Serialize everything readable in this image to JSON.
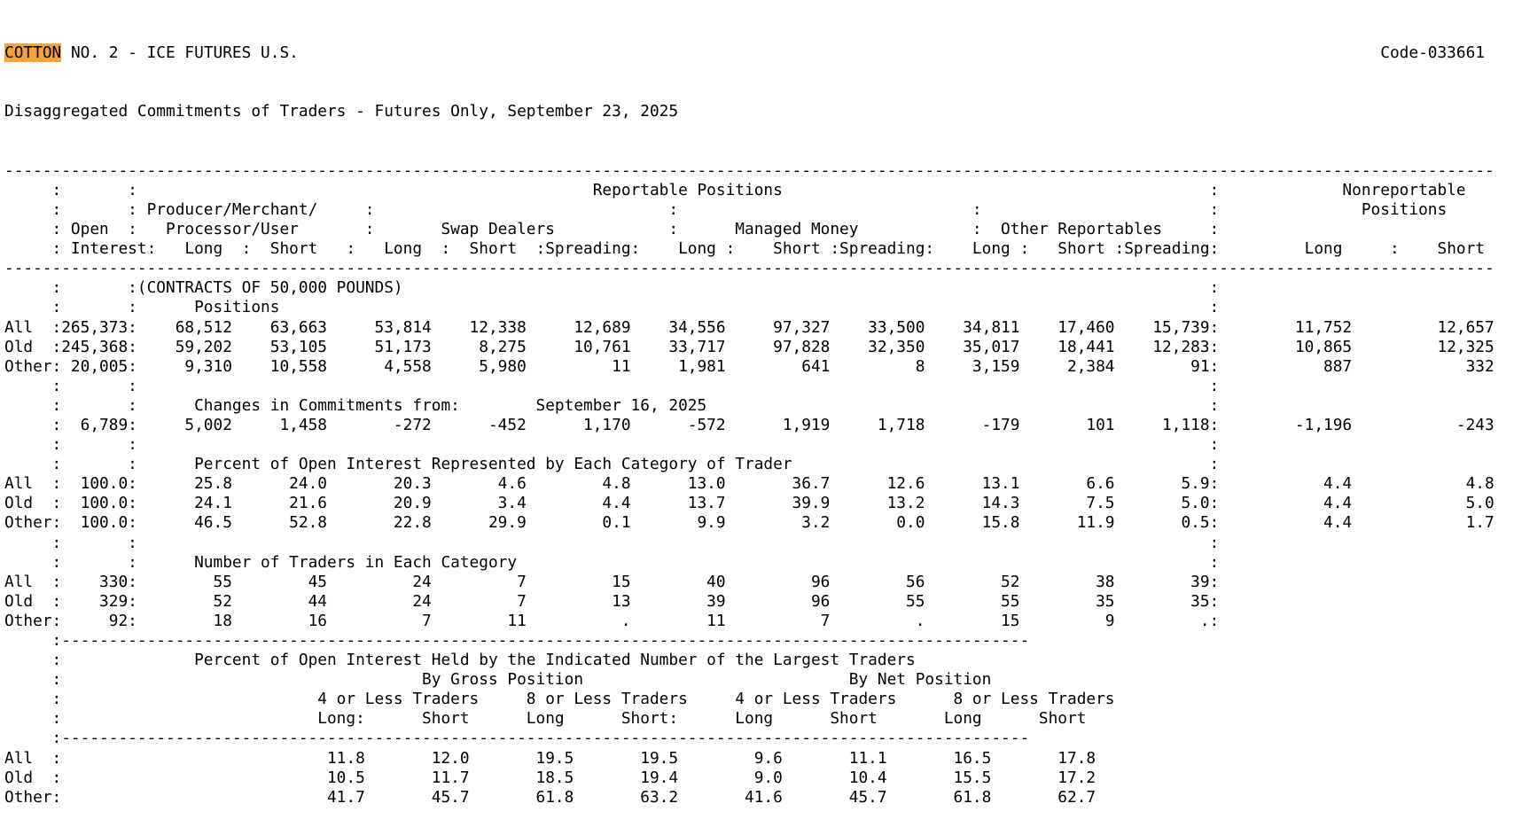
{
  "title": {
    "highlight": "COTTON",
    "rest": " NO. 2 - ICE FUTURES U.S.",
    "code": "Code-033661"
  },
  "subtitle": "Disaggregated Commitments of Traders - Futures Only, September 23, 2025",
  "colors": {
    "highlight_bg": "#F7A233",
    "text": "#000000",
    "background": "#FFFFFF"
  },
  "header": {
    "reportable": "Reportable Positions",
    "nonreportable_line1": "Nonreportable",
    "nonreportable_line2": "Positions",
    "producer_line1": "Producer/Merchant/",
    "producer_line2": "Processor/User",
    "open_line1": "Open",
    "open_line2": "Interest",
    "swap_dealers": "Swap Dealers",
    "managed_money": "Managed Money",
    "other_reportables": "Other Reportables",
    "long": "Long",
    "short": "Short",
    "spreading": "Spreading"
  },
  "sections": {
    "contracts_note": "(CONTRACTS OF 50,000 POUNDS)",
    "positions_label": "Positions",
    "changes_label": "Changes in Commitments from:",
    "changes_date": "September 16, 2025",
    "percent_label": "Percent of Open Interest Represented by Each Category of Trader",
    "traders_label": "Number of Traders in Each Category"
  },
  "rows": {
    "positions": [
      {
        "label": "All",
        "open_interest": "265,373",
        "values": [
          "68,512",
          "63,663",
          "53,814",
          "12,338",
          "12,689",
          "34,556",
          "97,327",
          "33,500",
          "34,811",
          "17,460",
          "15,739"
        ],
        "nonreportable": [
          "11,752",
          "12,657"
        ]
      },
      {
        "label": "Old",
        "open_interest": "245,368",
        "values": [
          "59,202",
          "53,105",
          "51,173",
          "8,275",
          "10,761",
          "33,717",
          "97,828",
          "32,350",
          "35,017",
          "18,441",
          "12,283"
        ],
        "nonreportable": [
          "10,865",
          "12,325"
        ]
      },
      {
        "label": "Other",
        "open_interest": "20,005",
        "values": [
          "9,310",
          "10,558",
          "4,558",
          "5,980",
          "11",
          "1,981",
          "641",
          "8",
          "3,159",
          "2,384",
          "91"
        ],
        "nonreportable": [
          "887",
          "332"
        ]
      }
    ],
    "changes": {
      "label": "",
      "open_interest": "6,789",
      "values": [
        "5,002",
        "1,458",
        "-272",
        "-452",
        "1,170",
        "-572",
        "1,919",
        "1,718",
        "-179",
        "101",
        "1,118"
      ],
      "nonreportable": [
        "-1,196",
        "-243"
      ]
    },
    "percent": [
      {
        "label": "All",
        "open_interest": "100.0",
        "values": [
          "25.8",
          "24.0",
          "20.3",
          "4.6",
          "4.8",
          "13.0",
          "36.7",
          "12.6",
          "13.1",
          "6.6",
          "5.9"
        ],
        "nonreportable": [
          "4.4",
          "4.8"
        ]
      },
      {
        "label": "Old",
        "open_interest": "100.0",
        "values": [
          "24.1",
          "21.6",
          "20.9",
          "3.4",
          "4.4",
          "13.7",
          "39.9",
          "13.2",
          "14.3",
          "7.5",
          "5.0"
        ],
        "nonreportable": [
          "4.4",
          "5.0"
        ]
      },
      {
        "label": "Other",
        "open_interest": "100.0",
        "values": [
          "46.5",
          "52.8",
          "22.8",
          "29.9",
          "0.1",
          "9.9",
          "3.2",
          "0.0",
          "15.8",
          "11.9",
          "0.5"
        ],
        "nonreportable": [
          "4.4",
          "1.7"
        ]
      }
    ],
    "traders": [
      {
        "label": "All",
        "open_interest": "330",
        "values": [
          "55",
          "45",
          "24",
          "7",
          "15",
          "40",
          "96",
          "56",
          "52",
          "38",
          "39"
        ],
        "nonreportable": [
          "",
          ""
        ]
      },
      {
        "label": "Old",
        "open_interest": "329",
        "values": [
          "52",
          "44",
          "24",
          "7",
          "13",
          "39",
          "96",
          "55",
          "55",
          "35",
          "35"
        ],
        "nonreportable": [
          "",
          ""
        ]
      },
      {
        "label": "Other",
        "open_interest": "92",
        "values": [
          "18",
          "16",
          "7",
          "11",
          ".",
          "11",
          "7",
          ".",
          "15",
          "9",
          "."
        ],
        "nonreportable": [
          "",
          ""
        ]
      }
    ]
  },
  "concentration": {
    "title": "Percent of Open Interest Held by the Indicated Number of the Largest Traders",
    "gross_label": "By Gross Position",
    "net_label": "By Net Position",
    "group_labels": [
      "4 or Less Traders",
      "8 or Less Traders",
      "4 or Less Traders",
      "8 or Less Traders"
    ],
    "col_labels": [
      "Long:",
      "Short",
      "Long",
      "Short:",
      "Long",
      "Short",
      "Long",
      "Short"
    ],
    "rows": [
      {
        "label": "All",
        "values": [
          "11.8",
          "12.0",
          "19.5",
          "19.5",
          "9.6",
          "11.1",
          "16.5",
          "17.8"
        ]
      },
      {
        "label": "Old",
        "values": [
          "10.5",
          "11.7",
          "18.5",
          "19.4",
          "9.0",
          "10.4",
          "15.5",
          "17.2"
        ]
      },
      {
        "label": "Other",
        "values": [
          "41.7",
          "45.7",
          "61.8",
          "63.2",
          "41.6",
          "45.7",
          "61.8",
          "62.7"
        ]
      }
    ]
  }
}
